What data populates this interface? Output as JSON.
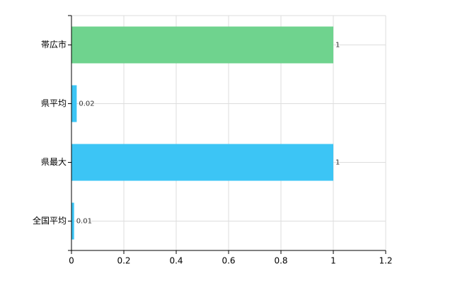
{
  "chart_data": {
    "type": "bar",
    "orientation": "horizontal",
    "categories": [
      "帯広市",
      "県平均",
      "県最大",
      "全国平均"
    ],
    "values": [
      1,
      0.02,
      1,
      0.01
    ],
    "colors": [
      "#6fd38e",
      "#3cc5f5",
      "#3cc5f5",
      "#3cc5f5"
    ],
    "xlim": [
      0,
      1.2
    ],
    "xticks": [
      0,
      0.2,
      0.4,
      0.6,
      0.8,
      1,
      1.2
    ],
    "grid": true
  }
}
